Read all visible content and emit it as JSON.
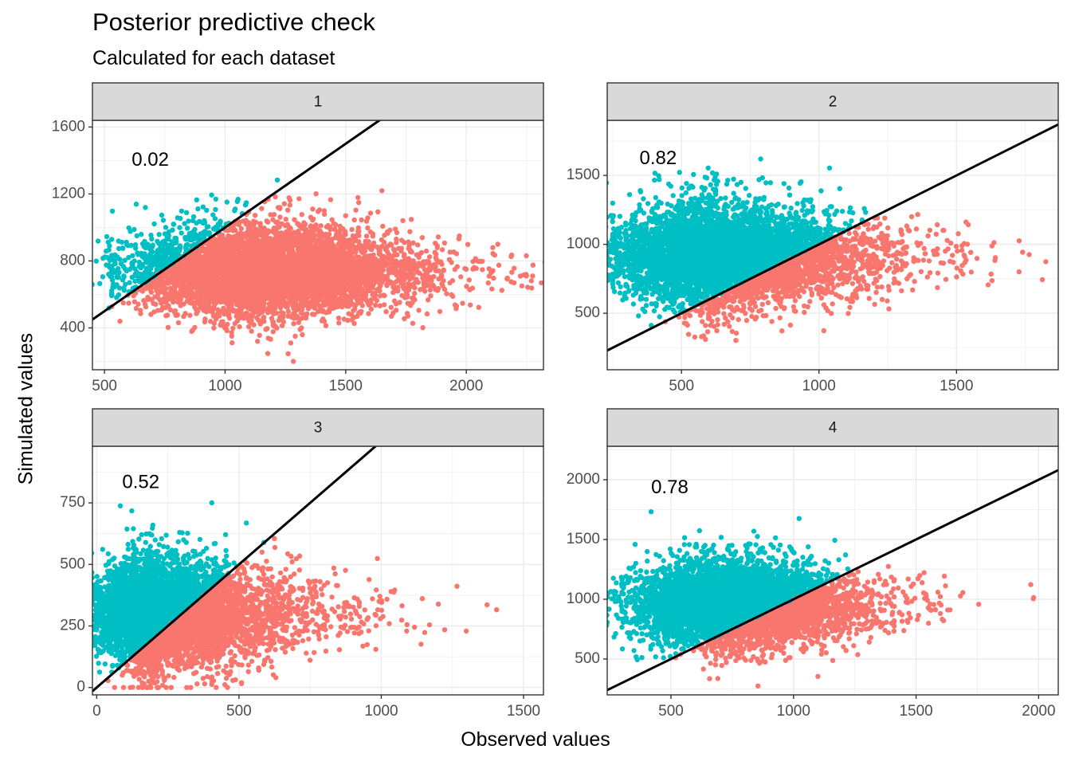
{
  "chart_data": {
    "type": "scatter",
    "title": "Posterior predictive check",
    "subtitle": "Calculated for each dataset",
    "xlabel": "Observed values",
    "ylabel": "Simulated values",
    "colors": {
      "above": "#00BFC4",
      "below": "#F8766D",
      "line": "#000000",
      "strip": "#D9D9D9",
      "grid": "#EBEBEB"
    },
    "reference_line": "y = x",
    "grid": true,
    "panels": [
      {
        "strip": "1",
        "p_value_label": "0.02",
        "label_pos": [
          690,
          1400
        ],
        "xlim": [
          450,
          2320
        ],
        "ylim": [
          150,
          1640
        ],
        "xticks": [
          500,
          1000,
          1500,
          2000
        ],
        "yticks": [
          400,
          800,
          1200,
          1600
        ],
        "cloud": {
          "x_min": 530,
          "x_mode": 1150,
          "x_max": 2100,
          "x_tail": 2250,
          "y_center": 740,
          "y_spread": 560,
          "y_min": 150,
          "y_max": 1570,
          "n": 2400
        }
      },
      {
        "strip": "2",
        "p_value_label": "0.82",
        "label_pos": [
          415,
          1620
        ],
        "xlim": [
          230,
          1870
        ],
        "ylim": [
          90,
          1900
        ],
        "xticks": [
          500,
          1000,
          1500
        ],
        "yticks": [
          500,
          1000,
          1500
        ],
        "cloud": {
          "x_min": 250,
          "x_mode": 640,
          "x_max": 1500,
          "x_tail": 1850,
          "y_center": 920,
          "y_spread": 740,
          "y_min": 120,
          "y_max": 1810,
          "n": 2400
        }
      },
      {
        "strip": "3",
        "p_value_label": "0.52",
        "label_pos": [
          155,
          830
        ],
        "xlim": [
          -15,
          1570
        ],
        "ylim": [
          -30,
          980
        ],
        "xticks": [
          0,
          500,
          1000,
          1500
        ],
        "yticks": [
          0,
          250,
          500,
          750
        ],
        "cloud": {
          "x_min": 40,
          "x_mode": 220,
          "x_max": 1000,
          "x_tail": 1500,
          "y_center": 300,
          "y_spread": 430,
          "y_min": 0,
          "y_max": 930,
          "n": 2400
        }
      },
      {
        "strip": "4",
        "p_value_label": "0.78",
        "label_pos": [
          495,
          1930
        ],
        "xlim": [
          240,
          2080
        ],
        "ylim": [
          200,
          2280
        ],
        "xticks": [
          500,
          1000,
          1500,
          2000
        ],
        "yticks": [
          500,
          1000,
          1500,
          2000
        ],
        "cloud": {
          "x_min": 300,
          "x_mode": 750,
          "x_max": 1500,
          "x_tail": 2010,
          "y_center": 960,
          "y_spread": 700,
          "y_min": 230,
          "y_max": 2160,
          "n": 2400
        }
      }
    ]
  }
}
